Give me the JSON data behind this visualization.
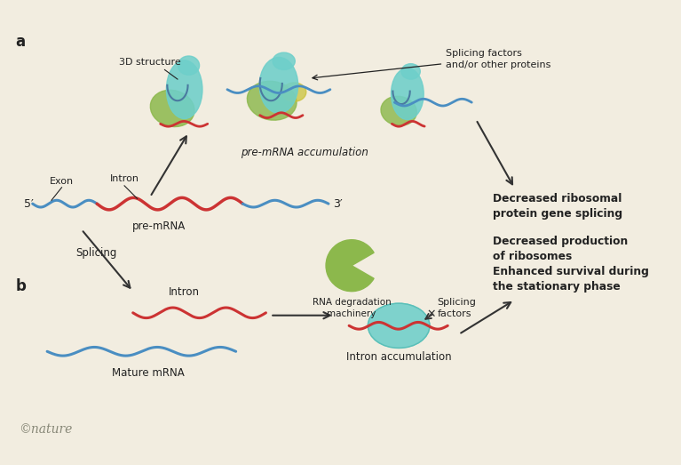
{
  "bg_color": "#f2ede0",
  "text_color": "#222222",
  "nature_color": "#888878",
  "blue_rna": "#4a8ec2",
  "red_intron": "#cc3333",
  "teal_light": "#6ecfca",
  "teal_dark": "#3aada8",
  "green_blob": "#8cb84c",
  "green_dark": "#5a8a1a",
  "arrow_color": "#333333",
  "label_a": "a",
  "label_b": "b",
  "label_3d": "3D structure",
  "label_splicing_factors": "Splicing factors\nand/or other proteins",
  "label_exon": "Exon",
  "label_intron": "Intron",
  "label_pre_mrna": "pre-mRNA",
  "label_5p": "5′",
  "label_3p": "3′",
  "label_pre_mrna_accum": "pre-mRNA accumulation",
  "label_splicing": "Splicing",
  "label_mature_mrna": "Mature mRNA",
  "label_intron_b": "Intron",
  "label_rna_deg": "RNA degradation\nmachinery",
  "label_splicing_factors_b": "Splicing\nfactors",
  "label_intron_accum": "Intron accumulation",
  "text1": "Decreased ribosomal\nprotein gene splicing",
  "text2": "Decreased production\nof ribosomes",
  "text3": "Enhanced survival during\nthe stationary phase",
  "copyright": "©nature"
}
